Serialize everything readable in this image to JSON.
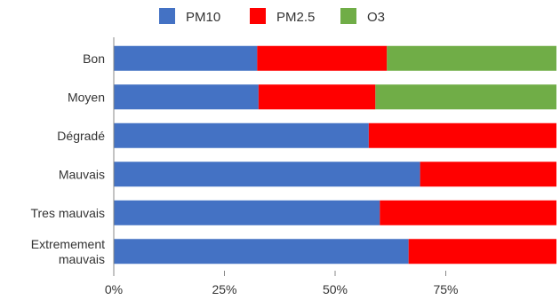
{
  "chart_data": {
    "type": "bar",
    "orientation": "horizontal",
    "stacked": "percent",
    "title": "",
    "xlabel": "",
    "ylabel": "",
    "categories": [
      [
        "Bon"
      ],
      [
        "Moyen"
      ],
      [
        "Dégradé"
      ],
      [
        "Mauvais"
      ],
      [
        "Tres mauvais"
      ],
      [
        "Extremement",
        "mauvais"
      ]
    ],
    "series": [
      {
        "name": "PM10",
        "color": "#4472C4",
        "values": [
          32.4,
          32.7,
          57.6,
          69.2,
          60.1,
          66.6
        ]
      },
      {
        "name": "PM2.5",
        "color": "#FF0000",
        "values": [
          29.3,
          26.4,
          42.4,
          30.8,
          39.9,
          33.4
        ]
      },
      {
        "name": "O3",
        "color": "#70AD47",
        "values": [
          38.3,
          40.9,
          0,
          0,
          0,
          0
        ]
      }
    ],
    "xlim": [
      0,
      100
    ],
    "xticks": [
      "0%",
      "25%",
      "50%",
      "75%"
    ],
    "xtick_values": [
      0,
      25,
      50,
      75
    ],
    "legend_position": "top",
    "grid": false
  }
}
